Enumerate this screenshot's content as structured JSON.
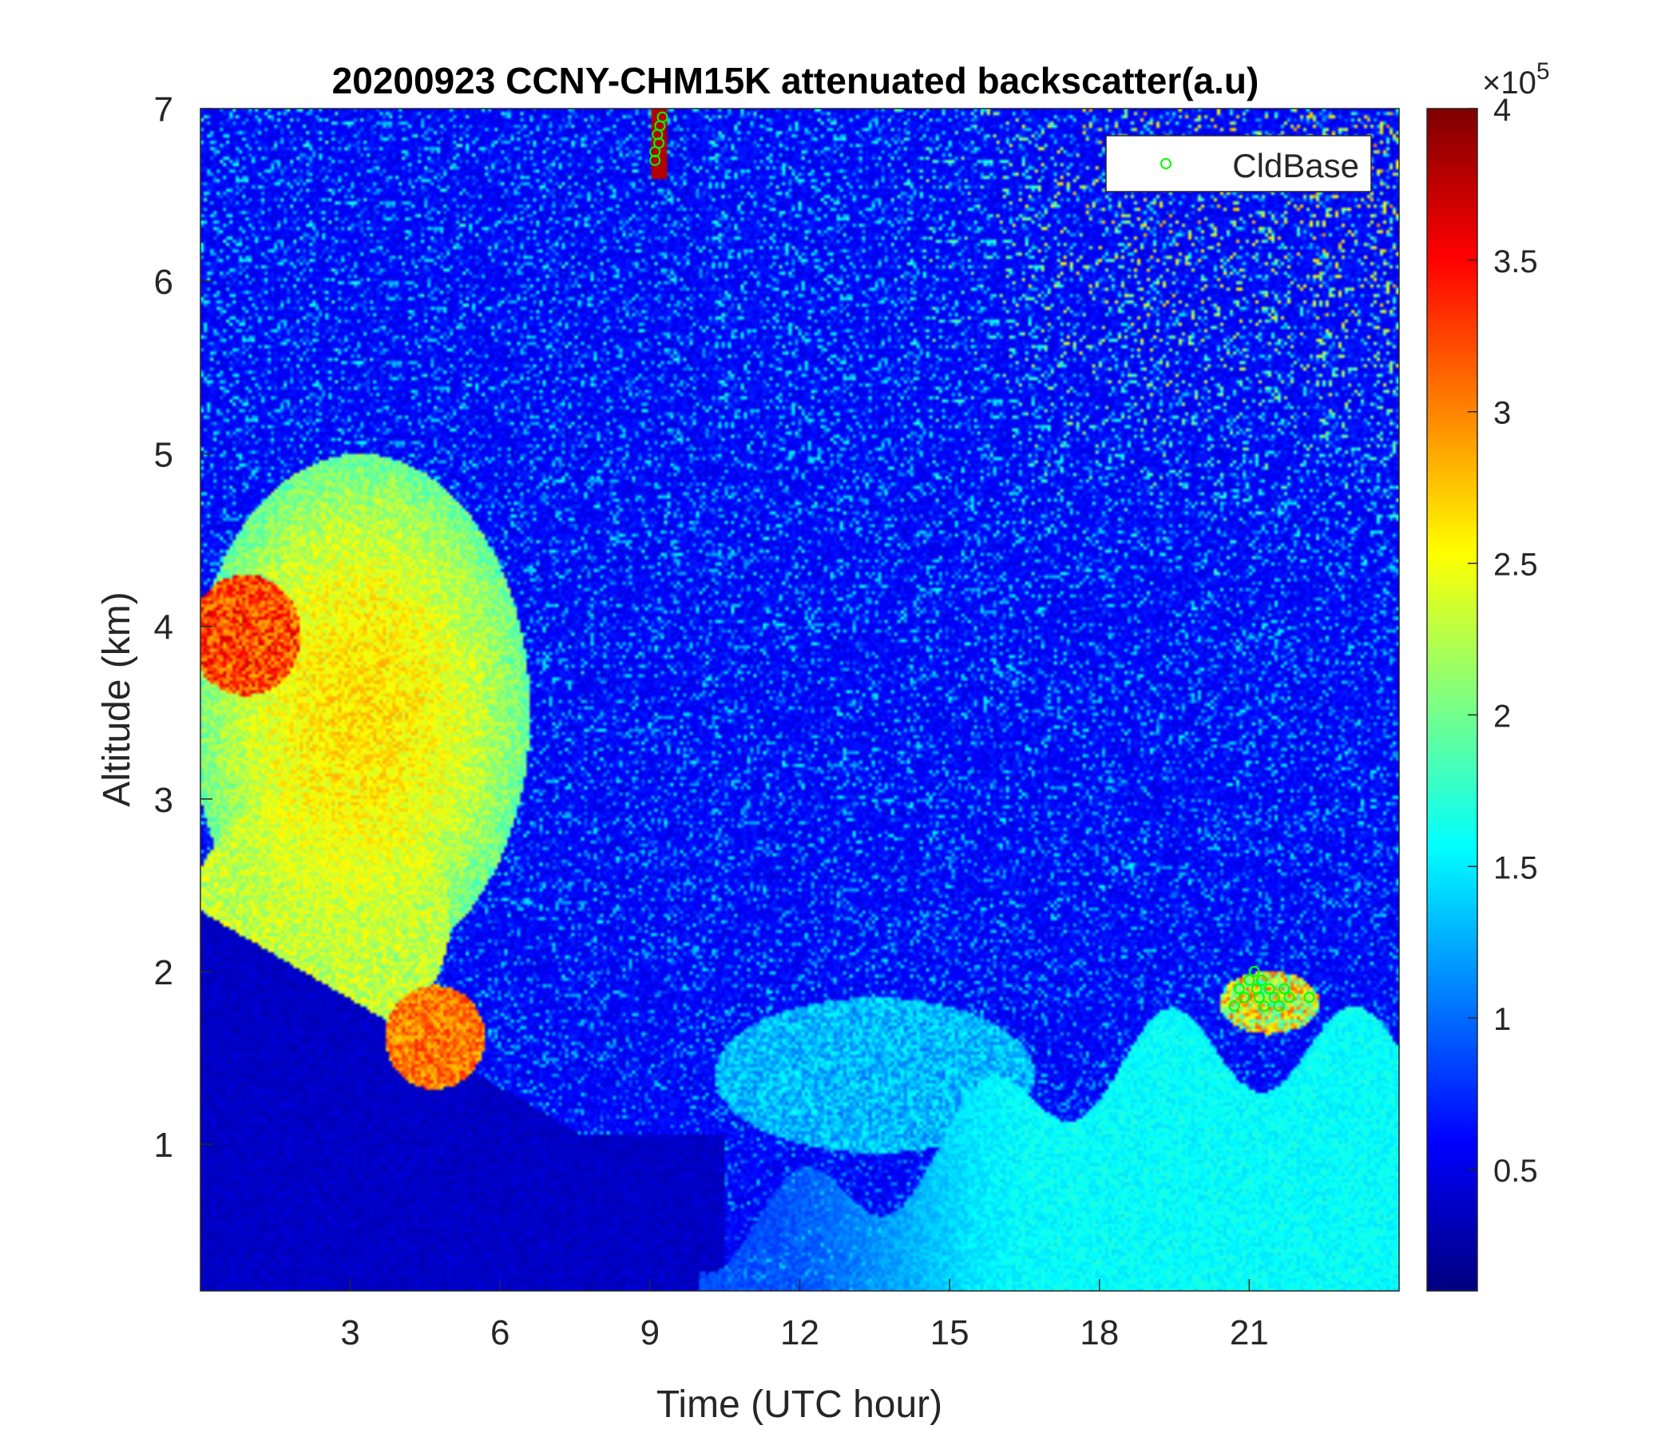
{
  "chart_data": {
    "type": "heatmap",
    "title": "20200923 CCNY-CHM15K attenuated backscatter(a.u)",
    "xlabel": "Time (UTC hour)",
    "ylabel": "Altitude (km)",
    "xlim": [
      0,
      24
    ],
    "ylim": [
      0.15,
      7
    ],
    "x_ticks": [
      3,
      6,
      9,
      12,
      15,
      18,
      21
    ],
    "x_tick_labels": [
      "3",
      "6",
      "9",
      "12",
      "15",
      "18",
      "21"
    ],
    "y_ticks": [
      1,
      2,
      3,
      4,
      5,
      6,
      7
    ],
    "y_tick_labels": [
      "1",
      "2",
      "3",
      "4",
      "5",
      "6",
      "7"
    ],
    "colormap": "jet",
    "colorbar": {
      "min": 10000,
      "max": 400000,
      "ticks": [
        0.5,
        1,
        1.5,
        2,
        2.5,
        3,
        3.5,
        4
      ],
      "tick_labels": [
        "0.5",
        "1",
        "1.5",
        "2",
        "2.5",
        "3",
        "3.5",
        "4"
      ],
      "exponent_label": "×10",
      "exponent_power": "5"
    },
    "features": [
      {
        "type": "aerosol_plume",
        "x_range": [
          0,
          7
        ],
        "y_range": [
          1.3,
          5.0
        ],
        "level": 2.5
      },
      {
        "type": "cloud",
        "x_range": [
          0,
          1.5
        ],
        "y_range": [
          3.7,
          4.2
        ],
        "level": 3.6
      },
      {
        "type": "cloud",
        "x_range": [
          4,
          5.7
        ],
        "y_range": [
          1.4,
          1.9
        ],
        "level": 3.2
      },
      {
        "type": "boundary_layer",
        "x_range": [
          10,
          24
        ],
        "y_range": [
          0.15,
          1.6
        ],
        "level": 1.5
      },
      {
        "type": "cloud",
        "x_range": [
          20.5,
          22.5
        ],
        "y_range": [
          1.6,
          2.1
        ],
        "level": 3.0
      }
    ],
    "series": [
      {
        "name": "CldBase",
        "marker": "circle",
        "color": "#00ff00",
        "points": [
          {
            "x": 9.1,
            "y": 6.75
          },
          {
            "x": 9.15,
            "y": 6.85
          },
          {
            "x": 9.2,
            "y": 6.9
          },
          {
            "x": 9.25,
            "y": 6.95
          },
          {
            "x": 9.1,
            "y": 6.7
          },
          {
            "x": 9.18,
            "y": 6.8
          },
          {
            "x": 20.7,
            "y": 1.8
          },
          {
            "x": 20.8,
            "y": 1.9
          },
          {
            "x": 20.9,
            "y": 1.85
          },
          {
            "x": 21.0,
            "y": 1.95
          },
          {
            "x": 21.1,
            "y": 2.0
          },
          {
            "x": 21.15,
            "y": 1.9
          },
          {
            "x": 21.2,
            "y": 1.85
          },
          {
            "x": 21.25,
            "y": 1.95
          },
          {
            "x": 21.3,
            "y": 1.8
          },
          {
            "x": 21.4,
            "y": 1.9
          },
          {
            "x": 21.5,
            "y": 1.85
          },
          {
            "x": 21.6,
            "y": 1.8
          },
          {
            "x": 21.7,
            "y": 1.9
          },
          {
            "x": 21.8,
            "y": 1.85
          },
          {
            "x": 22.2,
            "y": 1.85
          }
        ]
      }
    ],
    "legend": {
      "position": "top-right",
      "entries": [
        "CldBase"
      ]
    }
  }
}
